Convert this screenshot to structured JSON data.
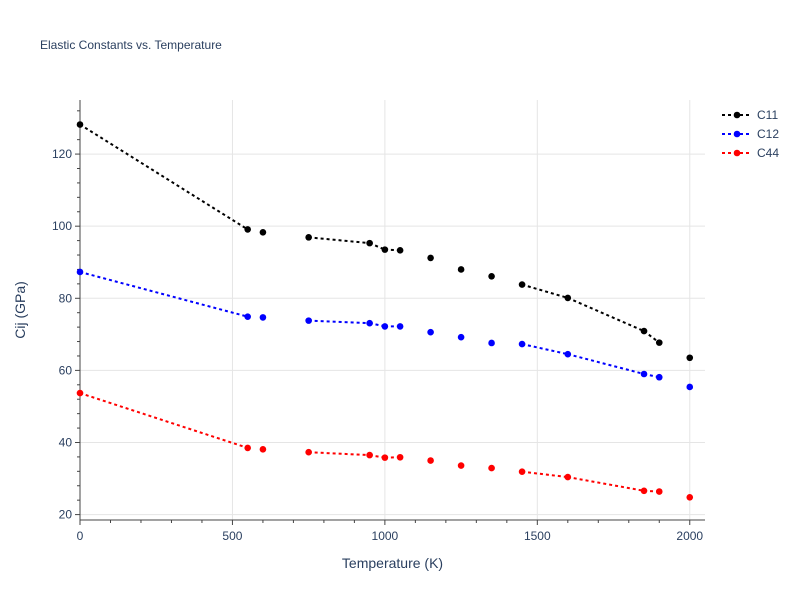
{
  "chart_data": {
    "type": "line",
    "title": "Elastic Constants vs. Temperature",
    "xlabel": "Temperature (K)",
    "ylabel": "Cij (GPa)",
    "xlim": [
      0,
      2050
    ],
    "ylim": [
      18.5,
      135
    ],
    "xticks": [
      0,
      500,
      1000,
      1500,
      2000
    ],
    "yticks": [
      20,
      40,
      60,
      80,
      100,
      120
    ],
    "grid": true,
    "legend_position": "top-right",
    "series": [
      {
        "name": "C11",
        "color": "#000000",
        "points": [
          [
            0,
            128.2
          ],
          [
            550,
            99.1
          ],
          [
            600,
            98.3
          ],
          [
            750,
            96.9
          ],
          [
            950,
            95.3
          ],
          [
            1000,
            93.5
          ],
          [
            1050,
            93.3
          ],
          [
            1150,
            91.2
          ],
          [
            1250,
            88.0
          ],
          [
            1350,
            86.1
          ],
          [
            1450,
            83.8
          ],
          [
            1600,
            80.1
          ],
          [
            1850,
            70.9
          ],
          [
            1900,
            67.7
          ],
          [
            2000,
            63.5
          ]
        ],
        "dashed_segments": [
          [
            0,
            1
          ],
          [
            3,
            4
          ],
          [
            4,
            5
          ],
          [
            5,
            6
          ],
          [
            10,
            11
          ],
          [
            11,
            12
          ],
          [
            12,
            13
          ]
        ]
      },
      {
        "name": "C12",
        "color": "#0000ff",
        "points": [
          [
            0,
            87.3
          ],
          [
            550,
            74.9
          ],
          [
            600,
            74.7
          ],
          [
            750,
            73.8
          ],
          [
            950,
            73.1
          ],
          [
            1000,
            72.2
          ],
          [
            1050,
            72.2
          ],
          [
            1150,
            70.6
          ],
          [
            1250,
            69.2
          ],
          [
            1350,
            67.6
          ],
          [
            1450,
            67.3
          ],
          [
            1600,
            64.5
          ],
          [
            1850,
            59.0
          ],
          [
            1900,
            58.1
          ],
          [
            2000,
            55.4
          ]
        ],
        "dashed_segments": [
          [
            0,
            1
          ],
          [
            3,
            4
          ],
          [
            4,
            5
          ],
          [
            5,
            6
          ],
          [
            10,
            11
          ],
          [
            11,
            12
          ],
          [
            12,
            13
          ]
        ]
      },
      {
        "name": "C44",
        "color": "#ff0000",
        "points": [
          [
            0,
            53.7
          ],
          [
            550,
            38.5
          ],
          [
            600,
            38.1
          ],
          [
            750,
            37.3
          ],
          [
            950,
            36.5
          ],
          [
            1000,
            35.8
          ],
          [
            1050,
            35.9
          ],
          [
            1150,
            35.0
          ],
          [
            1250,
            33.6
          ],
          [
            1350,
            32.9
          ],
          [
            1450,
            31.9
          ],
          [
            1600,
            30.4
          ],
          [
            1850,
            26.6
          ],
          [
            1900,
            26.4
          ],
          [
            2000,
            24.8
          ]
        ],
        "dashed_segments": [
          [
            0,
            1
          ],
          [
            3,
            4
          ],
          [
            4,
            5
          ],
          [
            5,
            6
          ],
          [
            10,
            11
          ],
          [
            11,
            12
          ],
          [
            12,
            13
          ]
        ]
      }
    ]
  }
}
